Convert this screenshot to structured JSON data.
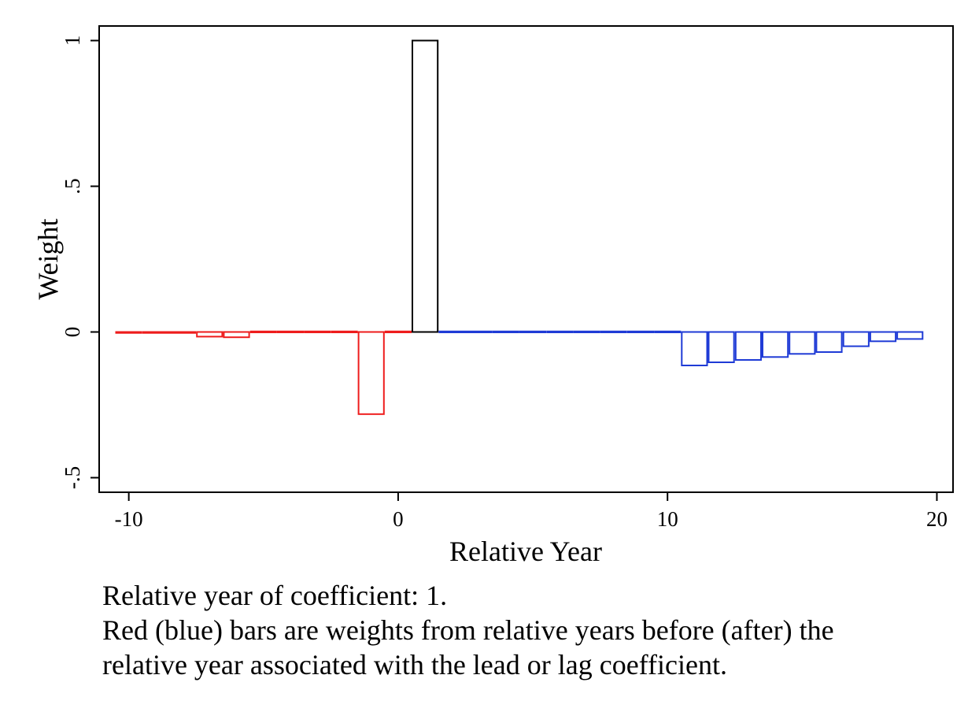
{
  "chart_data": {
    "type": "bar",
    "title": "",
    "xlabel": "Relative Year",
    "ylabel": "Weight",
    "xlim": [
      -11.1,
      20.6
    ],
    "ylim": [
      -0.55,
      1.05
    ],
    "xticks": [
      -10,
      0,
      10,
      20
    ],
    "xtick_labels": [
      "-10",
      "0",
      "10",
      "20"
    ],
    "yticks": [
      -0.5,
      0,
      0.5,
      1
    ],
    "ytick_labels": [
      "-.5",
      "0",
      ".5",
      "1"
    ],
    "grid": false,
    "legend": "none",
    "bar_width": 1,
    "series": [
      {
        "color": "#ee1c1c",
        "x": [
          -10,
          -9,
          -8,
          -7,
          -6,
          -5,
          -4,
          -3,
          -2,
          -1,
          0
        ],
        "values": [
          0,
          0,
          0,
          -0.016,
          -0.018,
          0.002,
          0.002,
          0.002,
          0.002,
          -0.282,
          0.002
        ]
      },
      {
        "color": "#000000",
        "x": [
          1
        ],
        "values": [
          1
        ]
      },
      {
        "color": "#1f3bd6",
        "x": [
          2,
          3,
          4,
          5,
          6,
          7,
          8,
          9,
          10,
          11,
          12,
          13,
          14,
          15,
          16,
          17,
          18,
          19
        ],
        "values": [
          0.002,
          0.002,
          0.002,
          0.002,
          0.002,
          0.002,
          0.002,
          0.002,
          0.002,
          -0.115,
          -0.104,
          -0.096,
          -0.086,
          -0.075,
          -0.069,
          -0.049,
          -0.032,
          -0.024
        ]
      }
    ]
  },
  "notes": [
    "Relative year of coefficient: 1.",
    "Red (blue) bars are weights from relative years before (after) the",
    "relative year associated with the lead or lag coefficient."
  ]
}
